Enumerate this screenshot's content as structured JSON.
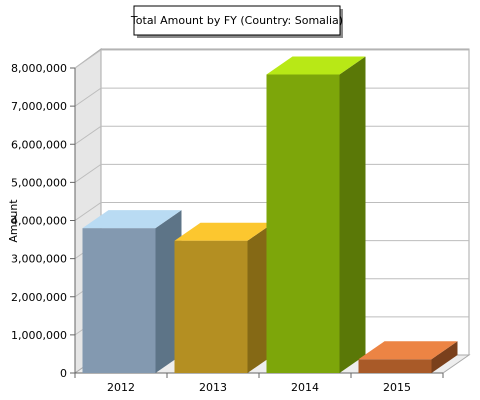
{
  "chart_data": {
    "type": "bar",
    "title": "Total Amount by FY (Country: Somalia)",
    "xlabel": "",
    "ylabel": "Amount",
    "categories": [
      "2012",
      "2013",
      "2014",
      "2015"
    ],
    "series": [
      {
        "values": [
          3800000,
          3470000,
          7830000,
          360000
        ]
      }
    ],
    "ylim": [
      0,
      8000000
    ],
    "yticks": [
      0,
      1000000,
      2000000,
      3000000,
      4000000,
      5000000,
      6000000,
      7000000,
      8000000
    ],
    "ytick_labels": [
      "0",
      "1,000,000",
      "2,000,000",
      "3,000,000",
      "4,000,000",
      "5,000,000",
      "6,000,000",
      "7,000,000",
      "8,000,000"
    ],
    "grid": true,
    "bar_colors": [
      {
        "front": "#8399b0",
        "top": "#b9dbf3",
        "side": "#5d7487"
      },
      {
        "front": "#b48f22",
        "top": "#fcc72f",
        "side": "#856915"
      },
      {
        "front": "#7da60a",
        "top": "#b8e816",
        "side": "#5a7807"
      },
      {
        "front": "#a95a28",
        "top": "#ec8444",
        "side": "#7a401c"
      }
    ]
  }
}
